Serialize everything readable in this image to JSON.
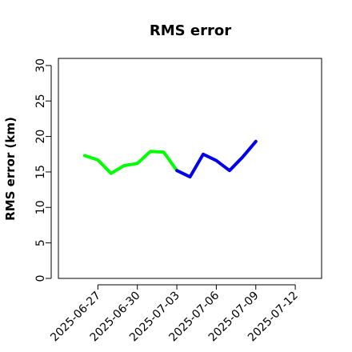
{
  "chart_data": {
    "type": "line",
    "title": "RMS error",
    "xlabel": "",
    "ylabel": "RMS error (km)",
    "ylim": [
      0,
      31
    ],
    "yticks": [
      0,
      5,
      10,
      15,
      20,
      25,
      30
    ],
    "xlim": [
      "2025-06-24",
      "2025-07-14"
    ],
    "xticks": [
      "2025-06-27",
      "2025-06-30",
      "2025-07-03",
      "2025-07-06",
      "2025-07-09",
      "2025-07-12"
    ],
    "highlight_tick": "2025-07-03",
    "highlight_color": "#228B22",
    "grid": false,
    "legend": "none",
    "series": [
      {
        "color": "#00ff00",
        "points": [
          [
            "2025-06-26",
            17.3
          ],
          [
            "2025-06-27",
            16.7
          ],
          [
            "2025-06-28",
            14.8
          ],
          [
            "2025-06-29",
            15.9
          ],
          [
            "2025-06-30",
            16.2
          ],
          [
            "2025-07-01",
            17.9
          ],
          [
            "2025-07-02",
            17.8
          ],
          [
            "2025-07-03",
            15.2
          ]
        ]
      },
      {
        "color": "#0000ee",
        "points": [
          [
            "2025-07-03",
            15.2
          ],
          [
            "2025-07-04",
            14.3
          ],
          [
            "2025-07-05",
            17.5
          ],
          [
            "2025-07-06",
            16.6
          ],
          [
            "2025-07-07",
            15.2
          ],
          [
            "2025-07-08",
            17.1
          ],
          [
            "2025-07-09",
            19.3
          ]
        ]
      }
    ]
  }
}
